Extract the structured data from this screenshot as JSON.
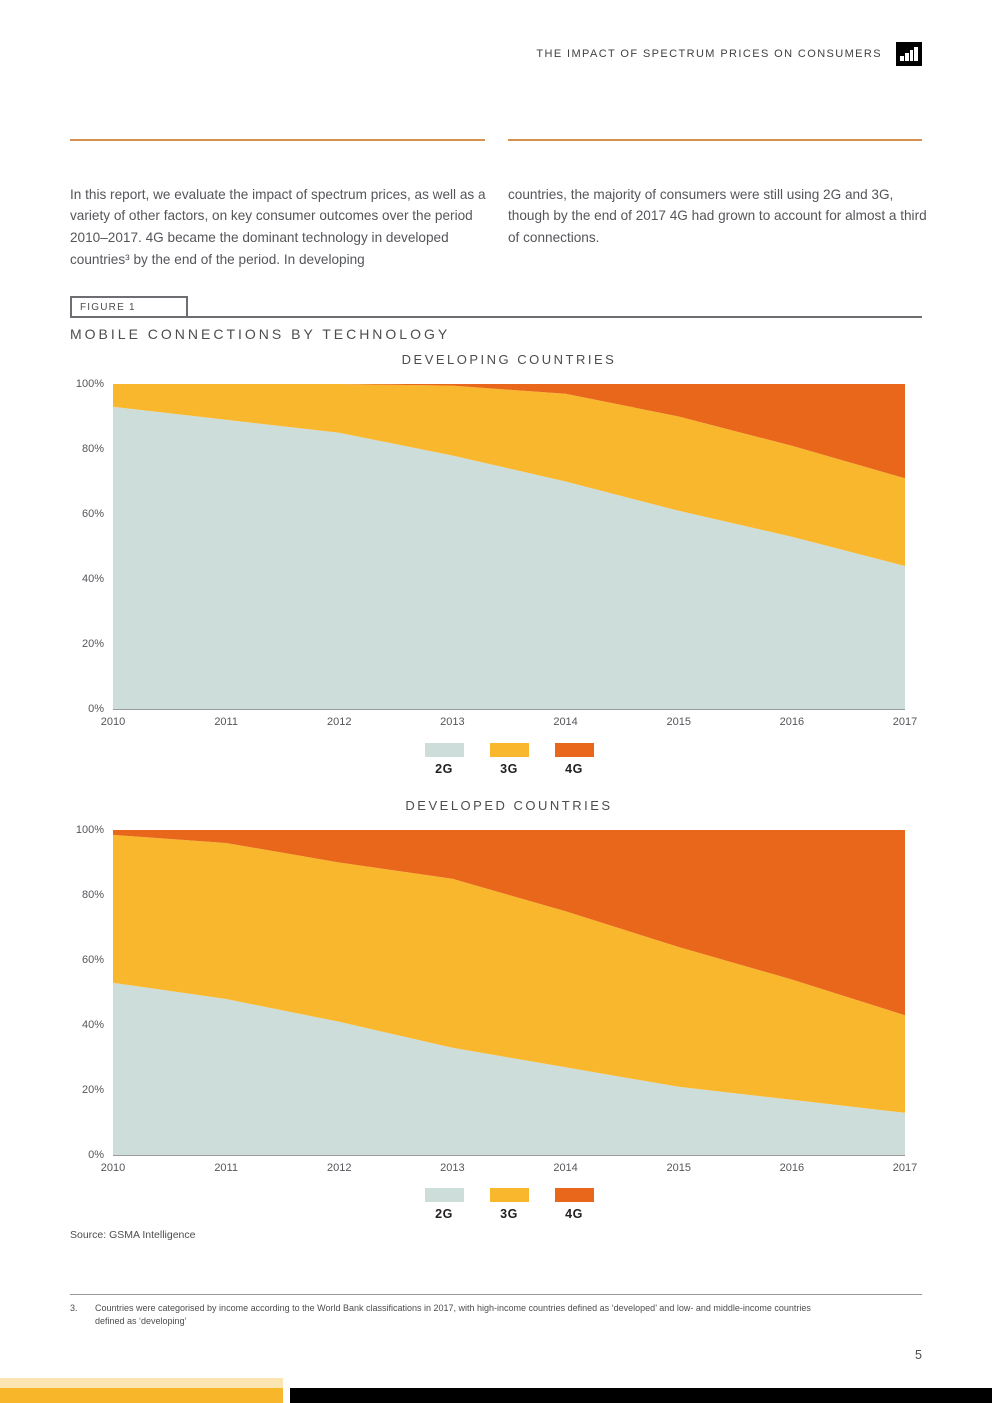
{
  "header": {
    "title": "THE IMPACT OF SPECTRUM PRICES ON CONSUMERS",
    "logo_icon": "bar-chart-icon"
  },
  "intro": {
    "col_left": "In this report, we evaluate the impact of spectrum prices, as well as a variety of other factors, on key consumer outcomes over the period 2010–2017. 4G became the dominant technology in developed countries³ by the end of the period. In developing",
    "col_right": "countries, the majority of consumers were still using 2G and 3G, though by the end of 2017 4G had grown to account for almost a third of connections."
  },
  "figure": {
    "label": "FIGURE 1",
    "title": "MOBILE CONNECTIONS BY TECHNOLOGY"
  },
  "legend": {
    "items": [
      {
        "label": "2G",
        "color": "#CDDDD9"
      },
      {
        "label": "3G",
        "color": "#F9B72D"
      },
      {
        "label": "4G",
        "color": "#E8671B"
      }
    ]
  },
  "chart_data": [
    {
      "type": "area",
      "stacked": true,
      "title": "DEVELOPING COUNTRIES",
      "categories": [
        "2010",
        "2011",
        "2012",
        "2013",
        "2014",
        "2015",
        "2016",
        "2017"
      ],
      "series": [
        {
          "name": "2G",
          "color": "#CDDDD9",
          "values": [
            93,
            89,
            85,
            78,
            70,
            61,
            53,
            44
          ]
        },
        {
          "name": "3G",
          "color": "#F9B72D",
          "values": [
            7,
            11,
            15,
            21.5,
            27,
            29,
            28,
            27
          ]
        },
        {
          "name": "4G",
          "color": "#E8671B",
          "values": [
            0,
            0,
            0,
            0.5,
            3,
            10,
            19,
            29
          ]
        }
      ],
      "yticks": [
        "0%",
        "20%",
        "40%",
        "60%",
        "80%",
        "100%"
      ],
      "ylim": [
        0,
        100
      ],
      "grid": false,
      "legend_position": "bottom"
    },
    {
      "type": "area",
      "stacked": true,
      "title": "DEVELOPED COUNTRIES",
      "categories": [
        "2010",
        "2011",
        "2012",
        "2013",
        "2014",
        "2015",
        "2016",
        "2017"
      ],
      "series": [
        {
          "name": "2G",
          "color": "#CDDDD9",
          "values": [
            53,
            48,
            41,
            33,
            27,
            21,
            17,
            13
          ]
        },
        {
          "name": "3G",
          "color": "#F9B72D",
          "values": [
            45.5,
            48,
            49,
            52,
            48,
            43,
            37,
            30
          ]
        },
        {
          "name": "4G",
          "color": "#E8671B",
          "values": [
            1.5,
            4,
            10,
            15,
            25,
            36,
            46,
            57
          ]
        }
      ],
      "yticks": [
        "0%",
        "20%",
        "40%",
        "60%",
        "80%",
        "100%"
      ],
      "ylim": [
        0,
        100
      ],
      "grid": false,
      "legend_position": "bottom"
    }
  ],
  "source": "Source: GSMA Intelligence",
  "footnote": {
    "number": "3.",
    "text": "Countries were categorised by income according to the World Bank classifications in 2017, with high-income countries defined as ‘developed’ and low- and middle-income countries defined as ‘developing’"
  },
  "page_number": "5",
  "colors": {
    "rule_orange": "#D6904F",
    "footer_gold": "#F8B62B",
    "footer_black": "#000000"
  }
}
